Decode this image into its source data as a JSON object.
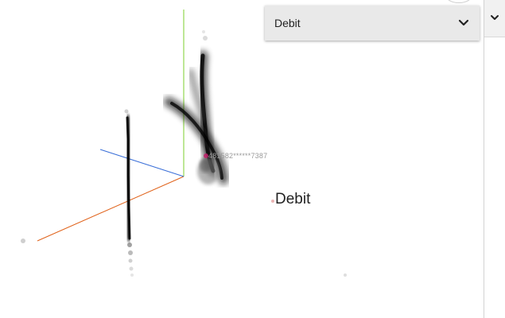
{
  "dropdown": {
    "value": "Debit"
  },
  "scene": {
    "label_large": "Debit",
    "label_small": "481582******7387"
  },
  "icons": {
    "dropdown": "chevron-down-icon",
    "panel": "chevron-down-icon"
  }
}
